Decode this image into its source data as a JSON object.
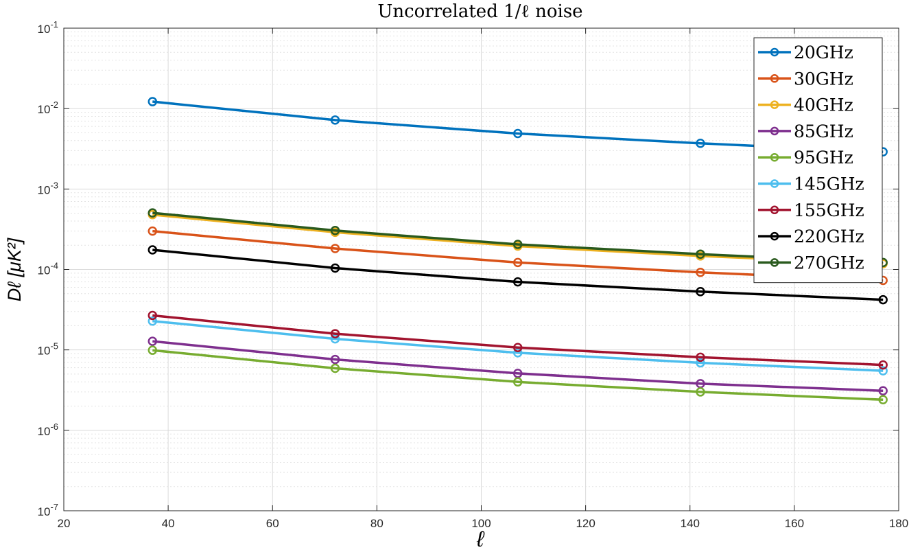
{
  "chart_data": {
    "type": "line",
    "title": "Uncorrelated 1/ℓ noise",
    "xlabel": "ℓ",
    "ylabel": "Dℓ [μK²]",
    "x": [
      37,
      72,
      107,
      142,
      177
    ],
    "xlim": [
      20,
      180
    ],
    "xticks": [
      20,
      40,
      60,
      80,
      100,
      120,
      140,
      160,
      180
    ],
    "ylim": [
      1e-07,
      0.1
    ],
    "yscale": "log",
    "ytick_exponents": [
      -7,
      -6,
      -5,
      -4,
      -3,
      -2,
      -1
    ],
    "grid": true,
    "minor_grid": true,
    "legend_position": "top-right",
    "marker": "circle",
    "series": [
      {
        "name": "20GHz",
        "color": "#0072BD",
        "values": [
          0.0122,
          0.0072,
          0.0049,
          0.0037,
          0.0029
        ]
      },
      {
        "name": "30GHz",
        "color": "#D95319",
        "values": [
          0.0003,
          0.000182,
          0.000122,
          9.2e-05,
          7.3e-05
        ]
      },
      {
        "name": "40GHz",
        "color": "#EDB120",
        "values": [
          0.00048,
          0.00029,
          0.000195,
          0.000147,
          0.000118
        ]
      },
      {
        "name": "85GHz",
        "color": "#7E2F8E",
        "values": [
          1.28e-05,
          7.6e-06,
          5.1e-06,
          3.8e-06,
          3.1e-06
        ]
      },
      {
        "name": "95GHz",
        "color": "#77AC30",
        "values": [
          9.9e-06,
          5.9e-06,
          4e-06,
          3e-06,
          2.4e-06
        ]
      },
      {
        "name": "145GHz",
        "color": "#4DBEEE",
        "values": [
          2.28e-05,
          1.37e-05,
          9.2e-06,
          6.9e-06,
          5.5e-06
        ]
      },
      {
        "name": "155GHz",
        "color": "#A2142F",
        "values": [
          2.68e-05,
          1.59e-05,
          1.07e-05,
          8.1e-06,
          6.5e-06
        ]
      },
      {
        "name": "220GHz",
        "color": "#000000",
        "values": [
          0.000175,
          0.000104,
          7e-05,
          5.3e-05,
          4.2e-05
        ]
      },
      {
        "name": "270GHz",
        "color": "#2A5A1E",
        "values": [
          0.000505,
          0.000305,
          0.000205,
          0.000155,
          0.000122
        ]
      }
    ]
  }
}
